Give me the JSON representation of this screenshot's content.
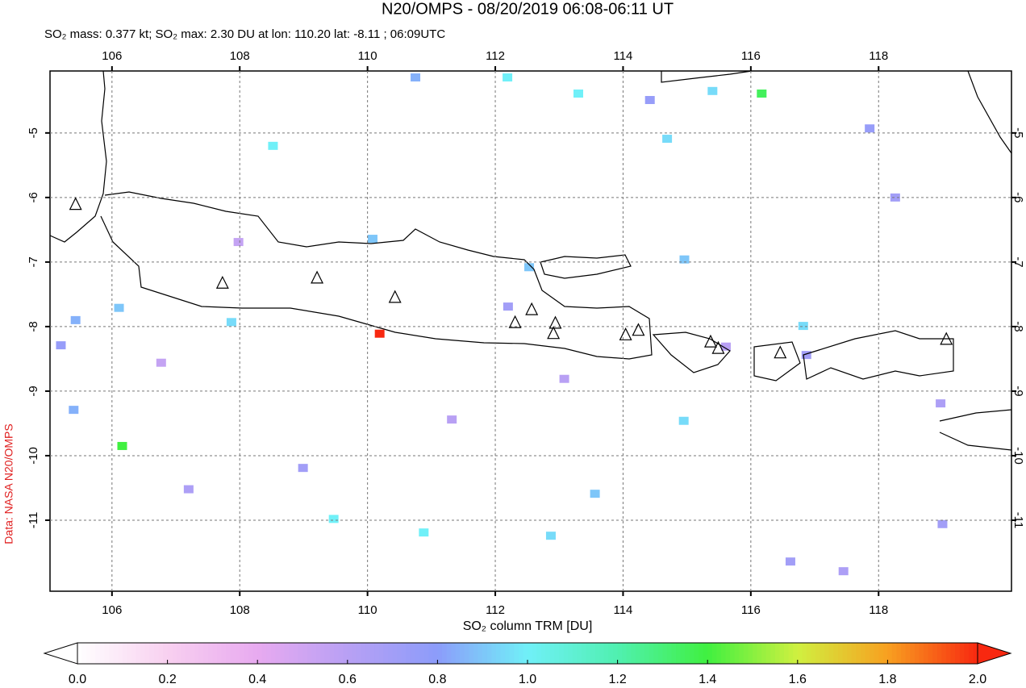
{
  "chart_data": {
    "type": "map",
    "title": "N20/OMPS - 08/20/2019 06:08-06:11 UT",
    "subtitle": "SO₂ mass: 0.377 kt; SO₂ max: 2.30 DU at lon: 110.20 lat: -8.11 ; 06:09UTC",
    "side_note": "Data: NASA N20/OMPS",
    "colorbar_label": "SO₂ column TRM [DU]",
    "xlim": [
      105.03,
      120.08
    ],
    "ylim": [
      -12.1,
      -4.04
    ],
    "xticks": [
      106,
      108,
      110,
      112,
      114,
      116,
      118
    ],
    "yticks": [
      -5,
      -6,
      -7,
      -8,
      -9,
      -10,
      -11
    ],
    "grid": true,
    "clim": [
      0,
      2
    ],
    "colormap": [
      "#ffffff",
      "#f8d0f0",
      "#e8aaf0",
      "#b8a0f4",
      "#8c9cfa",
      "#70f0f8",
      "#50f0b0",
      "#40f040",
      "#d0f040",
      "#f8a020",
      "#f82810"
    ],
    "cticks": [
      {
        "value": 0,
        "label": "0.0"
      },
      {
        "value": 0.2,
        "label": "0.2"
      },
      {
        "value": 0.4,
        "label": "0.4"
      },
      {
        "value": 0.6,
        "label": "0.6"
      },
      {
        "value": 0.8,
        "label": "0.8"
      },
      {
        "value": 1,
        "label": "1.0"
      },
      {
        "value": 1.2,
        "label": "1.2"
      },
      {
        "value": 1.4,
        "label": "1.4"
      },
      {
        "value": 1.6,
        "label": "1.6"
      },
      {
        "value": 1.8,
        "label": "1.8"
      },
      {
        "value": 2,
        "label": "2.0"
      }
    ],
    "pixels": {
      "lon": [
        110.19,
        106.16,
        116.17,
        112.19,
        113.3,
        115.4,
        114.69,
        108.52,
        110.75,
        117.86,
        114.42,
        114.95,
        116.82,
        114.96,
        110.88,
        109.47,
        112.87,
        113.56,
        105.43,
        105.2,
        105.4,
        107.87,
        106.11,
        110.08,
        112.53,
        116.87,
        116.62,
        117.45,
        112.2,
        108.99,
        107.2,
        119.0,
        118.97,
        118.26,
        115.61,
        113.08,
        107.98,
        106.77,
        111.32
      ],
      "lat": [
        -8.11,
        -9.85,
        -4.39,
        -4.14,
        -4.39,
        -4.35,
        -5.09,
        -5.2,
        -4.14,
        -4.93,
        -4.49,
        -9.46,
        -7.99,
        -6.96,
        -11.19,
        -10.98,
        -11.24,
        -10.59,
        -7.9,
        -8.29,
        -9.29,
        -7.93,
        -7.71,
        -6.64,
        -7.08,
        -8.44,
        -11.64,
        -11.79,
        -7.69,
        -10.19,
        -10.52,
        -11.06,
        -9.19,
        -6.0,
        -8.31,
        -8.81,
        -6.69,
        -8.56,
        -9.44
      ],
      "values": [
        2.3,
        1.4,
        1.35,
        1.0,
        1.0,
        0.95,
        0.95,
        1.0,
        0.85,
        0.75,
        0.75,
        0.95,
        0.95,
        0.9,
        1.0,
        1.0,
        0.95,
        0.9,
        0.85,
        0.75,
        0.85,
        0.95,
        0.9,
        0.9,
        0.9,
        0.7,
        0.7,
        0.65,
        0.7,
        0.7,
        0.65,
        0.7,
        0.65,
        0.7,
        0.6,
        0.6,
        0.55,
        0.55,
        0.6
      ]
    },
    "volcanoes": {
      "lon": [
        105.43,
        107.73,
        109.21,
        110.43,
        112.31,
        112.57,
        112.94,
        112.91,
        114.04,
        114.24,
        115.37,
        115.49,
        116.46,
        119.06
      ],
      "lat": [
        -6.11,
        -7.33,
        -7.25,
        -7.55,
        -7.94,
        -7.74,
        -7.95,
        -8.11,
        -8.13,
        -8.06,
        -8.24,
        -8.34,
        -8.41,
        -8.2
      ]
    }
  }
}
